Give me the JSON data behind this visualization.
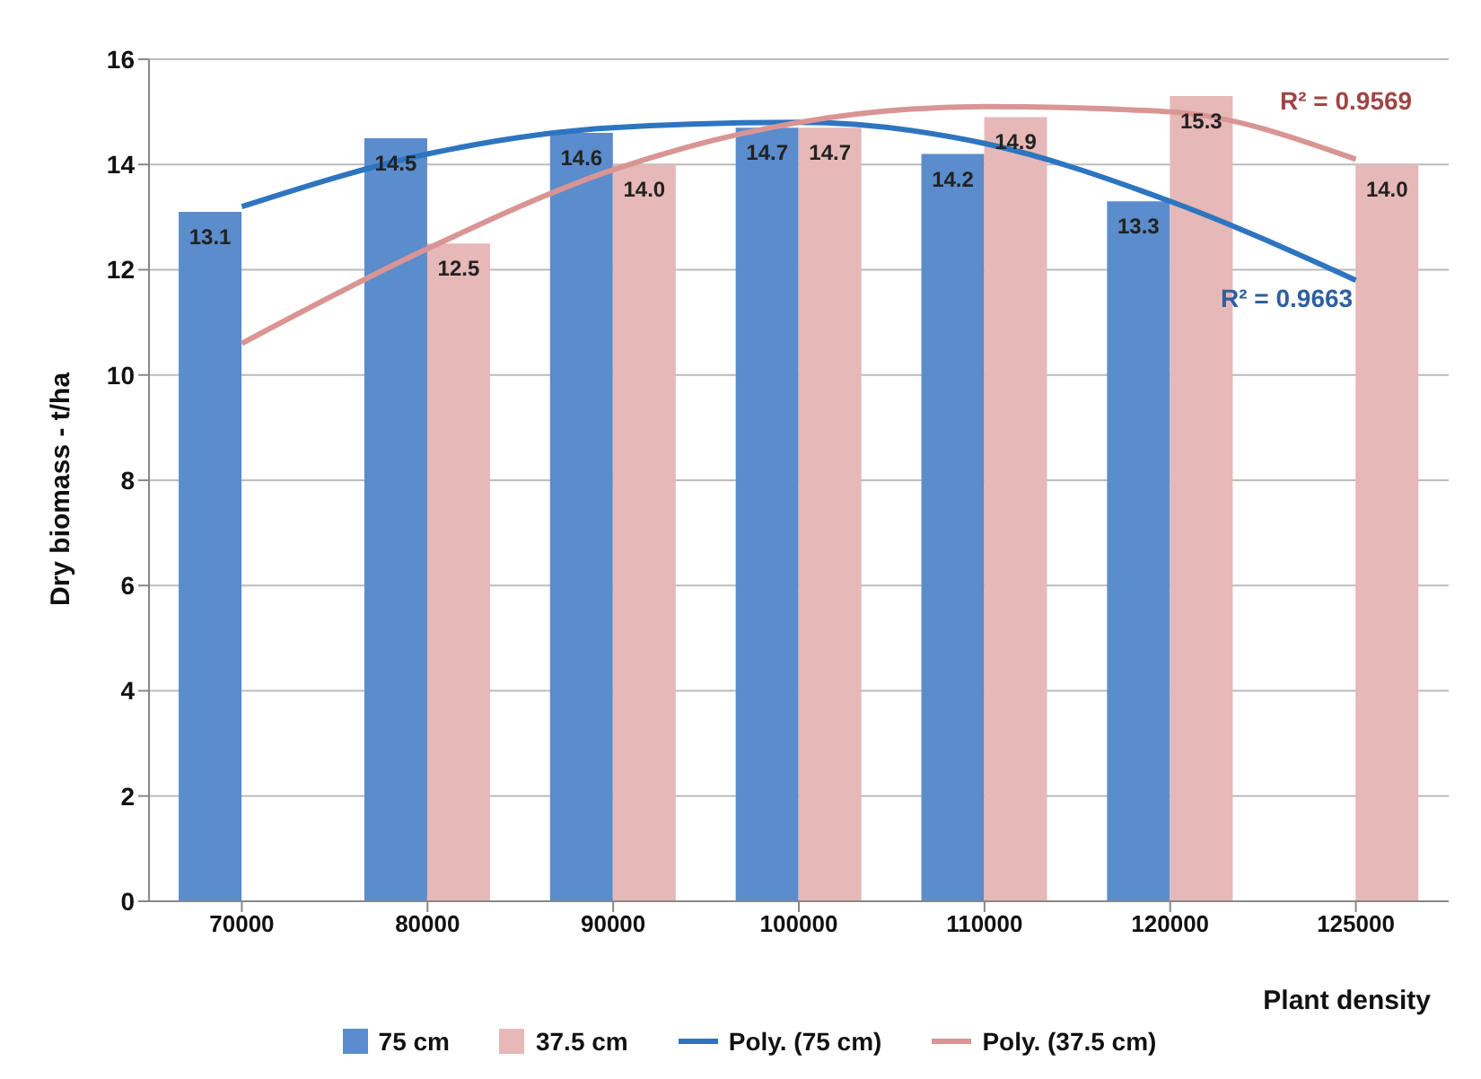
{
  "chart_data": {
    "type": "bar",
    "xlabel": "Plant density",
    "ylabel": "Dry biomass - t/ha",
    "categories": [
      "70000",
      "80000",
      "90000",
      "100000",
      "110000",
      "120000",
      "125000"
    ],
    "series": [
      {
        "name": "75 cm",
        "color": "#5b8ccc",
        "values": [
          13.1,
          14.5,
          14.6,
          14.7,
          14.2,
          13.3,
          null
        ],
        "value_labels": [
          "13.1",
          "14.5",
          "14.6",
          "14.7",
          "14.2",
          "13.3",
          null
        ]
      },
      {
        "name": "37.5 cm",
        "color": "#e6b8b7",
        "values": [
          null,
          12.5,
          14.0,
          14.7,
          14.9,
          15.3,
          14.0
        ],
        "value_labels": [
          null,
          "12.5",
          "14.0",
          "14.7",
          "14.9",
          "15.3",
          "14.0"
        ]
      },
      {
        "name": "Poly. (75 cm)",
        "type": "line",
        "color": "#2e75c0",
        "values": [
          13.2,
          14.2,
          14.7,
          14.8,
          14.4,
          13.3,
          11.8
        ]
      },
      {
        "name": "Poly. (37.5 cm)",
        "type": "line",
        "color": "#d99594",
        "values": [
          10.6,
          12.4,
          13.9,
          14.8,
          15.1,
          15.0,
          14.1
        ]
      }
    ],
    "annotations": [
      "R² = 0.9569",
      "R² = 0.9663"
    ],
    "ylim": [
      0,
      16
    ],
    "yticks": [
      0,
      2,
      4,
      6,
      8,
      10,
      12,
      14,
      16
    ],
    "grid": "y",
    "legend": "bottom"
  }
}
